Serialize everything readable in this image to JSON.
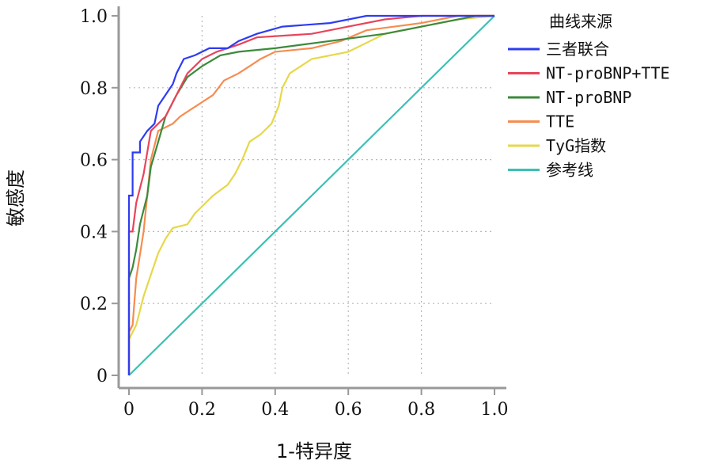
{
  "chart_data": {
    "type": "line",
    "xlabel": "1-特异度",
    "ylabel": "敏感度",
    "xlim": [
      0,
      1
    ],
    "ylim": [
      0,
      1
    ],
    "grid": true,
    "x_ticks": [
      {
        "value": 0,
        "label": "0"
      },
      {
        "value": 0.2,
        "label": "0.2"
      },
      {
        "value": 0.4,
        "label": "0.4"
      },
      {
        "value": 0.6,
        "label": "0.6"
      },
      {
        "value": 0.8,
        "label": "0.8"
      },
      {
        "value": 1.0,
        "label": "1.0"
      }
    ],
    "y_ticks": [
      {
        "value": 0,
        "label": "0"
      },
      {
        "value": 0.2,
        "label": "0.2"
      },
      {
        "value": 0.4,
        "label": "0.4"
      },
      {
        "value": 0.6,
        "label": "0.6"
      },
      {
        "value": 0.8,
        "label": "0.8"
      },
      {
        "value": 1.0,
        "label": "1.0"
      }
    ],
    "legend_title": "曲线来源",
    "legend_position": "right",
    "series": [
      {
        "name": "三者联合",
        "color": "#2e3cf0",
        "points": [
          [
            0,
            0
          ],
          [
            0,
            0.5
          ],
          [
            0.01,
            0.5
          ],
          [
            0.01,
            0.62
          ],
          [
            0.03,
            0.62
          ],
          [
            0.03,
            0.65
          ],
          [
            0.05,
            0.68
          ],
          [
            0.07,
            0.7
          ],
          [
            0.08,
            0.75
          ],
          [
            0.1,
            0.78
          ],
          [
            0.12,
            0.81
          ],
          [
            0.13,
            0.84
          ],
          [
            0.15,
            0.88
          ],
          [
            0.18,
            0.89
          ],
          [
            0.2,
            0.9
          ],
          [
            0.22,
            0.91
          ],
          [
            0.27,
            0.91
          ],
          [
            0.3,
            0.93
          ],
          [
            0.35,
            0.95
          ],
          [
            0.42,
            0.97
          ],
          [
            0.55,
            0.98
          ],
          [
            0.65,
            1.0
          ],
          [
            1.0,
            1.0
          ]
        ]
      },
      {
        "name": "NT-proBNP+TTE",
        "color": "#e8445a",
        "points": [
          [
            0,
            0
          ],
          [
            0,
            0.4
          ],
          [
            0.01,
            0.4
          ],
          [
            0.02,
            0.48
          ],
          [
            0.04,
            0.56
          ],
          [
            0.05,
            0.62
          ],
          [
            0.06,
            0.68
          ],
          [
            0.08,
            0.7
          ],
          [
            0.1,
            0.72
          ],
          [
            0.12,
            0.76
          ],
          [
            0.14,
            0.8
          ],
          [
            0.16,
            0.84
          ],
          [
            0.18,
            0.86
          ],
          [
            0.2,
            0.88
          ],
          [
            0.24,
            0.9
          ],
          [
            0.3,
            0.92
          ],
          [
            0.35,
            0.94
          ],
          [
            0.5,
            0.95
          ],
          [
            0.6,
            0.97
          ],
          [
            0.7,
            0.99
          ],
          [
            0.8,
            1.0
          ],
          [
            1.0,
            1.0
          ]
        ]
      },
      {
        "name": "NT-proBNP",
        "color": "#3c8a3c",
        "points": [
          [
            0,
            0
          ],
          [
            0,
            0.27
          ],
          [
            0.01,
            0.3
          ],
          [
            0.02,
            0.35
          ],
          [
            0.03,
            0.42
          ],
          [
            0.05,
            0.5
          ],
          [
            0.06,
            0.58
          ],
          [
            0.08,
            0.65
          ],
          [
            0.1,
            0.72
          ],
          [
            0.13,
            0.78
          ],
          [
            0.16,
            0.83
          ],
          [
            0.2,
            0.86
          ],
          [
            0.25,
            0.89
          ],
          [
            0.3,
            0.9
          ],
          [
            0.4,
            0.91
          ],
          [
            0.55,
            0.93
          ],
          [
            0.7,
            0.95
          ],
          [
            0.85,
            0.98
          ],
          [
            0.95,
            1.0
          ],
          [
            1.0,
            1.0
          ]
        ]
      },
      {
        "name": "TTE",
        "color": "#f58c50",
        "points": [
          [
            0,
            0
          ],
          [
            0,
            0.12
          ],
          [
            0.01,
            0.14
          ],
          [
            0.02,
            0.27
          ],
          [
            0.04,
            0.4
          ],
          [
            0.06,
            0.6
          ],
          [
            0.08,
            0.68
          ],
          [
            0.12,
            0.7
          ],
          [
            0.14,
            0.72
          ],
          [
            0.17,
            0.74
          ],
          [
            0.2,
            0.76
          ],
          [
            0.23,
            0.78
          ],
          [
            0.26,
            0.82
          ],
          [
            0.3,
            0.84
          ],
          [
            0.33,
            0.86
          ],
          [
            0.36,
            0.88
          ],
          [
            0.4,
            0.9
          ],
          [
            0.5,
            0.91
          ],
          [
            0.58,
            0.93
          ],
          [
            0.65,
            0.96
          ],
          [
            0.8,
            0.98
          ],
          [
            0.9,
            1.0
          ],
          [
            1.0,
            1.0
          ]
        ]
      },
      {
        "name": "TyG指数",
        "color": "#e6d84a",
        "points": [
          [
            0,
            0
          ],
          [
            0,
            0.1
          ],
          [
            0.02,
            0.14
          ],
          [
            0.04,
            0.22
          ],
          [
            0.06,
            0.28
          ],
          [
            0.08,
            0.34
          ],
          [
            0.1,
            0.38
          ],
          [
            0.12,
            0.41
          ],
          [
            0.16,
            0.42
          ],
          [
            0.18,
            0.45
          ],
          [
            0.2,
            0.47
          ],
          [
            0.23,
            0.5
          ],
          [
            0.27,
            0.53
          ],
          [
            0.29,
            0.56
          ],
          [
            0.31,
            0.6
          ],
          [
            0.33,
            0.65
          ],
          [
            0.36,
            0.67
          ],
          [
            0.39,
            0.7
          ],
          [
            0.41,
            0.75
          ],
          [
            0.42,
            0.8
          ],
          [
            0.44,
            0.84
          ],
          [
            0.47,
            0.86
          ],
          [
            0.5,
            0.88
          ],
          [
            0.6,
            0.9
          ],
          [
            0.66,
            0.93
          ],
          [
            0.7,
            0.95
          ],
          [
            0.8,
            0.97
          ],
          [
            0.9,
            0.99
          ],
          [
            1.0,
            1.0
          ]
        ]
      },
      {
        "name": "参考线",
        "color": "#3cc0b4",
        "points": [
          [
            0,
            0
          ],
          [
            1,
            1
          ]
        ]
      }
    ]
  }
}
